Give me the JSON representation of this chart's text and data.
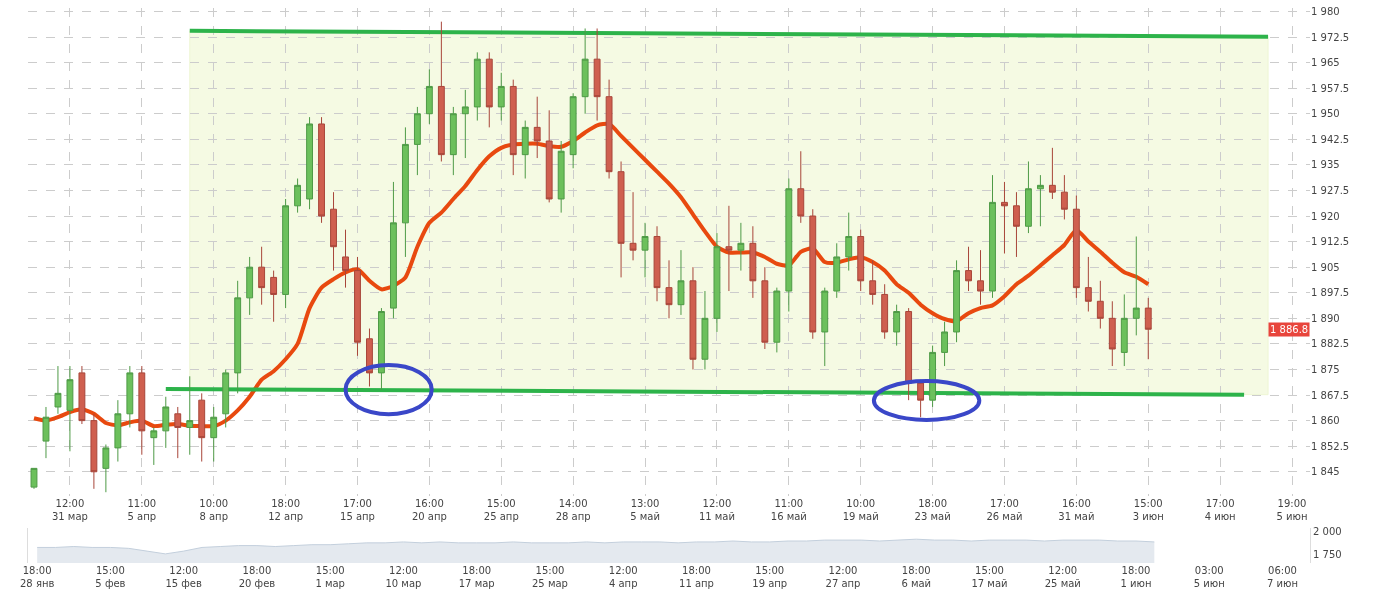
{
  "chart_data": [
    {
      "type": "candlestick",
      "categories": [
        null,
        null,
        null,
        "12:00\n31 мар",
        null,
        null,
        null,
        null,
        null,
        "11:00\n5 апр",
        null,
        null,
        null,
        null,
        null,
        "10:00\n8 апр",
        null,
        null,
        null,
        null,
        null,
        "18:00\n12 апр",
        null,
        null,
        null,
        null,
        null,
        "17:00\n15 апр",
        null,
        null,
        null,
        null,
        null,
        "16:00\n20 апр",
        null,
        null,
        null,
        null,
        null,
        "15:00\n25 апр",
        null,
        null,
        null,
        null,
        null,
        "14:00\n28 апр",
        null,
        null,
        null,
        null,
        null,
        "13:00\n5 май",
        null,
        null,
        null,
        null,
        null,
        "12:00\n11 май",
        null,
        null,
        null,
        null,
        null,
        "11:00\n16 май",
        null,
        null,
        null,
        null,
        null,
        "10:00\n19 май",
        null,
        null,
        null,
        null,
        null,
        "18:00\n23 май",
        null,
        null,
        null,
        null,
        null,
        "17:00\n26 май",
        null,
        null,
        null,
        null,
        null,
        "16:00\n31 май",
        null,
        null,
        null,
        null,
        null,
        "15:00\n3 июн",
        null,
        null,
        null,
        null,
        null,
        "17:00\n4 июн",
        null,
        null,
        null,
        null,
        null,
        "19:00\n5 июн",
        null
      ],
      "ohlc": [
        [
          1840.5,
          1846,
          1840,
          1846
        ],
        [
          1854,
          1864,
          1849,
          1861
        ],
        [
          1864,
          1876,
          1862,
          1868
        ],
        [
          1863,
          1876,
          1851,
          1872
        ],
        [
          1874,
          1876,
          1859,
          1860
        ],
        [
          1860,
          1862,
          1840,
          1845
        ],
        [
          1846,
          1853,
          1839,
          1852
        ],
        [
          1852,
          1866,
          1848,
          1862
        ],
        [
          1862,
          1876,
          1858,
          1874
        ],
        [
          1874,
          1876,
          1850,
          1857
        ],
        [
          1855,
          1858,
          1847,
          1857
        ],
        [
          1857,
          1867,
          1852,
          1864
        ],
        [
          1862,
          1864,
          1849,
          1858
        ],
        [
          1858,
          1873,
          1850,
          1860
        ],
        [
          1866,
          1868,
          1848,
          1855
        ],
        [
          1855,
          1864,
          1848,
          1861
        ],
        [
          1862,
          1875,
          1858,
          1874
        ],
        [
          1874,
          1901,
          1868,
          1896
        ],
        [
          1896,
          1908,
          1891,
          1905
        ],
        [
          1905,
          1911,
          1894,
          1899
        ],
        [
          1902,
          1904,
          1889,
          1897
        ],
        [
          1897,
          1925,
          1893,
          1923
        ],
        [
          1923,
          1931,
          1921,
          1929
        ],
        [
          1925,
          1949,
          1922,
          1947
        ],
        [
          1947,
          1949,
          1918,
          1920
        ],
        [
          1922,
          1927,
          1904,
          1911
        ],
        [
          1908,
          1916,
          1899,
          1904
        ],
        [
          1904,
          1908,
          1879,
          1883
        ],
        [
          1884,
          1887,
          1870,
          1874
        ],
        [
          1874,
          1893,
          1869,
          1892
        ],
        [
          1893,
          1930,
          1890,
          1918
        ],
        [
          1918,
          1946,
          1908,
          1941
        ],
        [
          1941,
          1952,
          1932,
          1950
        ],
        [
          1950,
          1963,
          1947,
          1958
        ],
        [
          1958,
          1977,
          1936,
          1938
        ],
        [
          1938,
          1952,
          1932,
          1950
        ],
        [
          1950,
          1957,
          1937,
          1952
        ],
        [
          1952,
          1968,
          1948,
          1966
        ],
        [
          1966,
          1968,
          1946,
          1952
        ],
        [
          1952,
          1962,
          1948,
          1958
        ],
        [
          1958,
          1960,
          1932,
          1938
        ],
        [
          1938,
          1948,
          1931,
          1946
        ],
        [
          1946,
          1955,
          1937,
          1942
        ],
        [
          1942,
          1951,
          1924,
          1925
        ],
        [
          1925,
          1942,
          1921,
          1939
        ],
        [
          1938,
          1956,
          1934,
          1955
        ],
        [
          1955,
          1975,
          1950,
          1966
        ],
        [
          1966,
          1975,
          1948,
          1955
        ],
        [
          1955,
          1960,
          1931,
          1933
        ],
        [
          1933,
          1936,
          1902,
          1912
        ],
        [
          1912,
          1927,
          1907,
          1910
        ],
        [
          1910,
          1918,
          1902,
          1914
        ],
        [
          1914,
          1917,
          1895,
          1899
        ],
        [
          1899,
          1907,
          1890,
          1894
        ],
        [
          1894,
          1910,
          1891,
          1901
        ],
        [
          1901,
          1905,
          1875,
          1878
        ],
        [
          1878,
          1898,
          1875,
          1890
        ],
        [
          1890,
          1915,
          1886,
          1911
        ],
        [
          1911,
          1923,
          1898,
          1910
        ],
        [
          1910,
          1918,
          1904,
          1912
        ],
        [
          1912,
          1917,
          1896,
          1901
        ],
        [
          1901,
          1905,
          1881,
          1883
        ],
        [
          1883,
          1899,
          1880,
          1898
        ],
        [
          1898,
          1931,
          1892,
          1928
        ],
        [
          1928,
          1939,
          1918,
          1920
        ],
        [
          1920,
          1922,
          1884,
          1886
        ],
        [
          1886,
          1899,
          1876,
          1898
        ],
        [
          1898,
          1912,
          1896,
          1908
        ],
        [
          1908,
          1921,
          1904,
          1914
        ],
        [
          1914,
          1916,
          1898,
          1901
        ],
        [
          1901,
          1907,
          1894,
          1897
        ],
        [
          1897,
          1900,
          1884,
          1886
        ],
        [
          1886,
          1894,
          1882,
          1892
        ],
        [
          1892,
          1893,
          1866,
          1871
        ],
        [
          1871,
          1872,
          1861,
          1866
        ],
        [
          1866,
          1882,
          1864,
          1880
        ],
        [
          1880,
          1889,
          1876,
          1886
        ],
        [
          1886,
          1907,
          1883,
          1904
        ],
        [
          1904,
          1911,
          1898,
          1901
        ],
        [
          1901,
          1910,
          1894,
          1898
        ],
        [
          1898,
          1932,
          1896,
          1924
        ],
        [
          1924,
          1930,
          1909,
          1923
        ],
        [
          1923,
          1927,
          1908,
          1917
        ],
        [
          1917,
          1936,
          1915,
          1928
        ],
        [
          1928,
          1932,
          1917,
          1929
        ],
        [
          1929,
          1940,
          1925,
          1927
        ],
        [
          1927,
          1932,
          1919,
          1922
        ],
        [
          1922,
          1926,
          1896,
          1899
        ],
        [
          1899,
          1908,
          1892,
          1895
        ],
        [
          1895,
          1901,
          1887,
          1890
        ],
        [
          1890,
          1895,
          1876,
          1881
        ],
        [
          1880,
          1897,
          1876,
          1890
        ],
        [
          1890,
          1914,
          1885,
          1893
        ],
        [
          1893,
          1896,
          1878,
          1886.8
        ],
        null,
        null,
        null,
        null,
        null,
        null,
        null,
        null,
        null,
        null,
        null,
        null,
        null
      ],
      "ylim": [
        1838,
        1981
      ],
      "yticks": [
        {
          "value": 1845,
          "label": "1 845"
        },
        {
          "value": 1852.5,
          "label": "1 852.5"
        },
        {
          "value": 1860,
          "label": "1 860"
        },
        {
          "value": 1867.5,
          "label": "1 867.5"
        },
        {
          "value": 1875,
          "label": "1 875"
        },
        {
          "value": 1882.5,
          "label": "1 882.5"
        },
        {
          "value": 1890,
          "label": "1 890"
        },
        {
          "value": 1897.5,
          "label": "1 897.5"
        },
        {
          "value": 1905,
          "label": "1 905"
        },
        {
          "value": 1912.5,
          "label": "1 912.5"
        },
        {
          "value": 1920,
          "label": "1 920"
        },
        {
          "value": 1927.5,
          "label": "1 927.5"
        },
        {
          "value": 1935,
          "label": "1 935"
        },
        {
          "value": 1942.5,
          "label": "1 942.5"
        },
        {
          "value": 1950,
          "label": "1 950"
        },
        {
          "value": 1957.5,
          "label": "1 957.5"
        },
        {
          "value": 1965,
          "label": "1 965"
        },
        {
          "value": 1972.5,
          "label": "1 972.5"
        },
        {
          "value": 1980,
          "label": "1 980"
        }
      ],
      "grid": true,
      "series": [
        {
          "type": "line",
          "color": "#e8490f",
          "values": [
            1860.7,
            1860,
            1861,
            1862.5,
            1863.3,
            1862,
            1859.3,
            1858.6,
            1859.5,
            1860,
            1858.4,
            1858.8,
            1859,
            1858.5,
            1858.4,
            1858.4,
            1860,
            1863,
            1867,
            1872,
            1874.5,
            1878,
            1882.5,
            1893,
            1899,
            1901.5,
            1903.5,
            1904.4,
            1901,
            1898.5,
            1899.5,
            1902,
            1911,
            1918,
            1921,
            1925,
            1928.8,
            1933.5,
            1937.5,
            1940,
            1941,
            1941.2,
            1941.2,
            1940.5,
            1940.3,
            1942,
            1944.5,
            1946.6,
            1947,
            1943.5,
            1940,
            1936.5,
            1933,
            1929.5,
            1925.5,
            1920.5,
            1915.5,
            1911,
            1909.3,
            1909.3,
            1909.3,
            1908,
            1906,
            1905.5,
            1909.5,
            1910.5,
            1906.5,
            1906.3,
            1907.3,
            1907.9,
            1906.5,
            1904,
            1900,
            1897.5,
            1894,
            1891.5,
            1889.8,
            1889.2,
            1891.5,
            1893,
            1893.8,
            1896.5,
            1900,
            1902.5,
            1905.5,
            1908.5,
            1911.5,
            1915.9,
            1912.5,
            1909.5,
            1906.3,
            1903.5,
            1902.2,
            1900,
            null,
            null,
            null,
            null,
            null,
            null,
            null,
            null,
            null,
            null,
            null,
            null,
            null
          ]
        },
        {
          "type": "line",
          "color": "#2db34a",
          "values": [
            null,
            null,
            null,
            null,
            null,
            null,
            null,
            null,
            null,
            null,
            null,
            null,
            null,
            1974.3,
            null,
            null,
            null,
            null,
            null,
            null,
            null,
            null,
            null,
            null,
            null,
            null,
            null,
            null,
            null,
            null,
            null,
            null,
            null,
            null,
            null,
            null,
            null,
            null,
            null,
            null,
            null,
            null,
            null,
            null,
            null,
            null,
            null,
            null,
            null,
            null,
            null,
            null,
            null,
            null,
            null,
            null,
            null,
            null,
            null,
            null,
            null,
            null,
            null,
            null,
            null,
            null,
            null,
            null,
            null,
            null,
            null,
            null,
            null,
            null,
            null,
            null,
            null,
            null,
            null,
            null,
            null,
            null,
            null,
            null,
            null,
            null,
            null,
            null,
            null,
            null,
            null,
            null,
            null,
            null,
            null,
            null,
            null,
            null,
            null,
            null,
            null,
            null,
            null,
            1972.6,
            null,
            null,
            null
          ],
          "lower": [
            null,
            null,
            null,
            null,
            null,
            null,
            null,
            null,
            null,
            null,
            null,
            null,
            null,
            1869.3,
            null,
            null,
            null,
            null,
            null,
            null,
            null,
            null,
            null,
            null,
            null,
            null,
            null,
            null,
            null,
            null,
            null,
            null,
            null,
            null,
            null,
            null,
            null,
            null,
            null,
            null,
            null,
            null,
            null,
            null,
            null,
            null,
            null,
            null,
            null,
            null,
            null,
            null,
            null,
            null,
            null,
            null,
            null,
            null,
            null,
            null,
            null,
            null,
            null,
            null,
            null,
            null,
            null,
            null,
            null,
            null,
            null,
            null,
            null,
            null,
            null,
            null,
            null,
            null,
            null,
            null,
            null,
            null,
            null,
            null,
            null,
            null,
            null,
            null,
            null,
            null,
            null,
            null,
            null,
            null,
            null,
            null,
            null,
            null,
            null,
            null,
            null,
            null,
            null,
            1867.6,
            null,
            null,
            null
          ],
          "upper": [
            null,
            null,
            null,
            null,
            null,
            null,
            null,
            null,
            null,
            null,
            null,
            null,
            null,
            1974.3,
            null,
            null,
            null,
            null,
            null,
            null,
            null,
            null,
            null,
            null,
            null,
            null,
            null,
            null,
            null,
            null,
            null,
            null,
            null,
            null,
            null,
            null,
            null,
            null,
            null,
            null,
            null,
            null,
            null,
            null,
            null,
            null,
            null,
            null,
            null,
            null,
            null,
            null,
            null,
            null,
            null,
            null,
            null,
            null,
            null,
            null,
            null,
            null,
            null,
            null,
            null,
            null,
            null,
            null,
            null,
            null,
            null,
            null,
            null,
            null,
            null,
            null,
            null,
            null,
            null,
            null,
            null,
            null,
            null,
            null,
            null,
            null,
            null,
            null,
            null,
            null,
            null,
            null,
            null,
            null,
            null,
            null,
            null,
            null,
            null,
            null,
            null,
            null,
            null,
            1972.6,
            null,
            null,
            null
          ]
        },
        {
          "type": "line",
          "color": "#2db34a",
          "values": [
            null,
            null,
            null,
            null,
            null,
            null,
            null,
            null,
            null,
            null,
            null,
            1869.3,
            null,
            null,
            null,
            null,
            null,
            null,
            null,
            null,
            null,
            null,
            null,
            null,
            null,
            null,
            null,
            null,
            null,
            null,
            null,
            null,
            null,
            null,
            null,
            null,
            null,
            null,
            null,
            null,
            null,
            null,
            null,
            null,
            null,
            null,
            null,
            null,
            null,
            null,
            null,
            null,
            null,
            null,
            null,
            null,
            null,
            null,
            null,
            null,
            null,
            null,
            null,
            null,
            null,
            null,
            null,
            null,
            null,
            null,
            null,
            null,
            null,
            null,
            null,
            null,
            null,
            null,
            null,
            null,
            null,
            null,
            null,
            null,
            null,
            null,
            null,
            null,
            null,
            null,
            null,
            null,
            null,
            null,
            null,
            null,
            null,
            null,
            null,
            null,
            null,
            1867.6,
            null,
            null,
            null,
            null,
            null
          ]
        }
      ],
      "annotations": [
        "1 886.8"
      ]
    },
    {
      "type": "area",
      "categories": [
        "18:00\n28 янв",
        null,
        null,
        null,
        "15:00\n5 фев",
        null,
        null,
        null,
        "12:00\n15 фев",
        null,
        null,
        null,
        "18:00\n20 фев",
        null,
        null,
        null,
        "15:00\n1 мар",
        null,
        null,
        null,
        "12:00\n10 мар",
        null,
        null,
        null,
        "18:00\n17 мар",
        null,
        null,
        null,
        "15:00\n25 мар",
        null,
        null,
        null,
        "12:00\n4 апр",
        null,
        null,
        null,
        "18:00\n11 апр",
        null,
        null,
        null,
        "15:00\n19 апр",
        null,
        null,
        null,
        "12:00\n27 апр",
        null,
        null,
        null,
        "18:00\n6 май",
        null,
        null,
        null,
        "15:00\n17 май",
        null,
        null,
        null,
        "12:00\n25 май",
        null,
        null,
        null,
        "18:00\n1 июн",
        null,
        null,
        null,
        "03:00\n5 июн",
        null,
        null,
        null,
        "06:00\n7 июн",
        null
      ],
      "values": [
        1830,
        1830,
        1840,
        1830,
        1830,
        1820,
        1790,
        1760,
        1790,
        1830,
        1840,
        1850,
        1850,
        1840,
        1850,
        1860,
        1860,
        1870,
        1880,
        1880,
        1890,
        1880,
        1890,
        1880,
        1880,
        1880,
        1890,
        1880,
        1880,
        1880,
        1890,
        1880,
        1890,
        1890,
        1890,
        1880,
        1890,
        1890,
        1900,
        1890,
        1890,
        1900,
        1900,
        1910,
        1910,
        1910,
        1900,
        1910,
        1920,
        1910,
        1910,
        1900,
        1910,
        1910,
        1910,
        1900,
        1910,
        1910,
        1910,
        1900,
        1900,
        1890,
        null,
        null,
        null,
        null,
        null,
        null,
        null,
        null
      ],
      "color": "#c3cfdc",
      "ylim": [
        1660,
        2040
      ],
      "yticks": [
        {
          "value": 1750,
          "label": "1 750"
        },
        {
          "value": 2000,
          "label": "2 000"
        }
      ]
    }
  ]
}
